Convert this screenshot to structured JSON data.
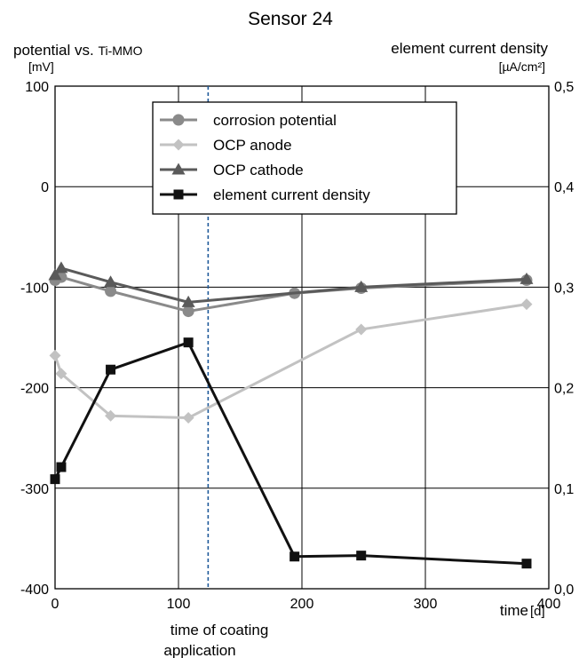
{
  "chart_data": {
    "type": "line",
    "title": "Sensor 24",
    "left_axis": {
      "label_main": "potential vs. ",
      "label_ref": "Ti-MMO",
      "unit": "[mV]",
      "range": [
        -400,
        100
      ],
      "ticks": [
        {
          "value": 100,
          "label": "100"
        },
        {
          "value": 0,
          "label": "0"
        },
        {
          "value": -100,
          "label": "-100"
        },
        {
          "value": -200,
          "label": "-200"
        },
        {
          "value": -300,
          "label": "-300"
        },
        {
          "value": -400,
          "label": "-400"
        }
      ]
    },
    "right_axis": {
      "label": "element current density",
      "unit": "[µA/cm²]",
      "range": [
        0.0,
        0.5
      ],
      "ticks": [
        {
          "value": 0.5,
          "label": "0,5"
        },
        {
          "value": 0.4,
          "label": "0,4"
        },
        {
          "value": 0.3,
          "label": "0,3"
        },
        {
          "value": 0.2,
          "label": "0,2"
        },
        {
          "value": 0.1,
          "label": "0,1"
        },
        {
          "value": 0.0,
          "label": "0,0"
        }
      ]
    },
    "x_axis": {
      "label": "time",
      "unit": "[d]",
      "range": [
        0,
        400
      ],
      "ticks": [
        {
          "value": 0,
          "label": "0"
        },
        {
          "value": 100,
          "label": "100"
        },
        {
          "value": 200,
          "label": "200"
        },
        {
          "value": 300,
          "label": "300"
        },
        {
          "value": 400,
          "label": "400"
        }
      ]
    },
    "grid": true,
    "legend_position": "top-center",
    "annotation": {
      "x": 124,
      "line1": "time of coating",
      "line2": "application",
      "color": "#1f5a9a"
    },
    "series": [
      {
        "name": "corrosion potential",
        "axis": "left",
        "marker": "circle",
        "color": "#8a8a8a",
        "x": [
          0,
          5,
          45,
          108,
          194,
          248,
          382
        ],
        "y": [
          -93,
          -90,
          -104,
          -124,
          -106,
          -101,
          -93
        ]
      },
      {
        "name": "OCP anode",
        "axis": "left",
        "marker": "diamond",
        "color": "#c2c2c2",
        "x": [
          0,
          5,
          45,
          108,
          248,
          382
        ],
        "y": [
          -168,
          -186,
          -228,
          -230,
          -142,
          -117
        ]
      },
      {
        "name": "OCP cathode",
        "axis": "left",
        "marker": "triangle",
        "color": "#5a5a5a",
        "x": [
          0,
          5,
          45,
          108,
          248,
          382
        ],
        "y": [
          -88,
          -81,
          -95,
          -115,
          -100,
          -92
        ]
      },
      {
        "name": "element current density",
        "axis": "right",
        "marker": "square",
        "color": "#111111",
        "x": [
          0,
          5,
          45,
          108,
          194,
          248,
          382
        ],
        "y": [
          0.109,
          0.121,
          0.218,
          0.245,
          0.032,
          0.033,
          0.025
        ]
      }
    ]
  }
}
